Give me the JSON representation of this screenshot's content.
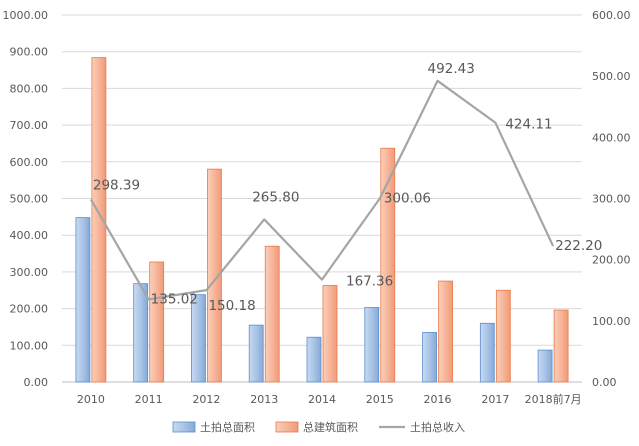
{
  "chart_data": {
    "type": "bar",
    "categories": [
      "2010",
      "2011",
      "2012",
      "2013",
      "2014",
      "2015",
      "2016",
      "2017",
      "2018前7月"
    ],
    "series": [
      {
        "name": "土拍总面积",
        "type": "bar",
        "axis": "left",
        "values": [
          448,
          268,
          238,
          155,
          122,
          203,
          135,
          160,
          87
        ]
      },
      {
        "name": "总建筑面积",
        "type": "bar",
        "axis": "left",
        "values": [
          884,
          327,
          580,
          370,
          263,
          637,
          275,
          250,
          196
        ]
      },
      {
        "name": "土拍总收入",
        "type": "line",
        "axis": "right",
        "values": [
          298.39,
          135.02,
          150.18,
          265.8,
          167.36,
          300.06,
          492.43,
          424.11,
          222.2
        ],
        "labels": [
          "298.39",
          "135.02",
          "150.18",
          "265.80",
          "167.36",
          "300.06",
          "492.43",
          "424.11",
          "222.20"
        ]
      }
    ],
    "y_left": {
      "min": 0,
      "max": 1000,
      "ticks": [
        "0.00",
        "100.00",
        "200.00",
        "300.00",
        "400.00",
        "500.00",
        "600.00",
        "700.00",
        "800.00",
        "900.00",
        "1000.00"
      ]
    },
    "y_right": {
      "min": 0,
      "max": 600,
      "ticks": [
        "0.00",
        "100.00",
        "200.00",
        "300.00",
        "400.00",
        "500.00",
        "600.00"
      ]
    },
    "grid": true,
    "legend": "bottom",
    "colors": {
      "bar1_fill": "#a9c4e6",
      "bar1_stroke": "#5b8fcf",
      "bar2_fill": "#f6b59a",
      "bar2_stroke": "#e87b4a",
      "line": "#a5a5a5",
      "grid": "#d9d9d9",
      "axis": "#bfbfbf"
    }
  }
}
